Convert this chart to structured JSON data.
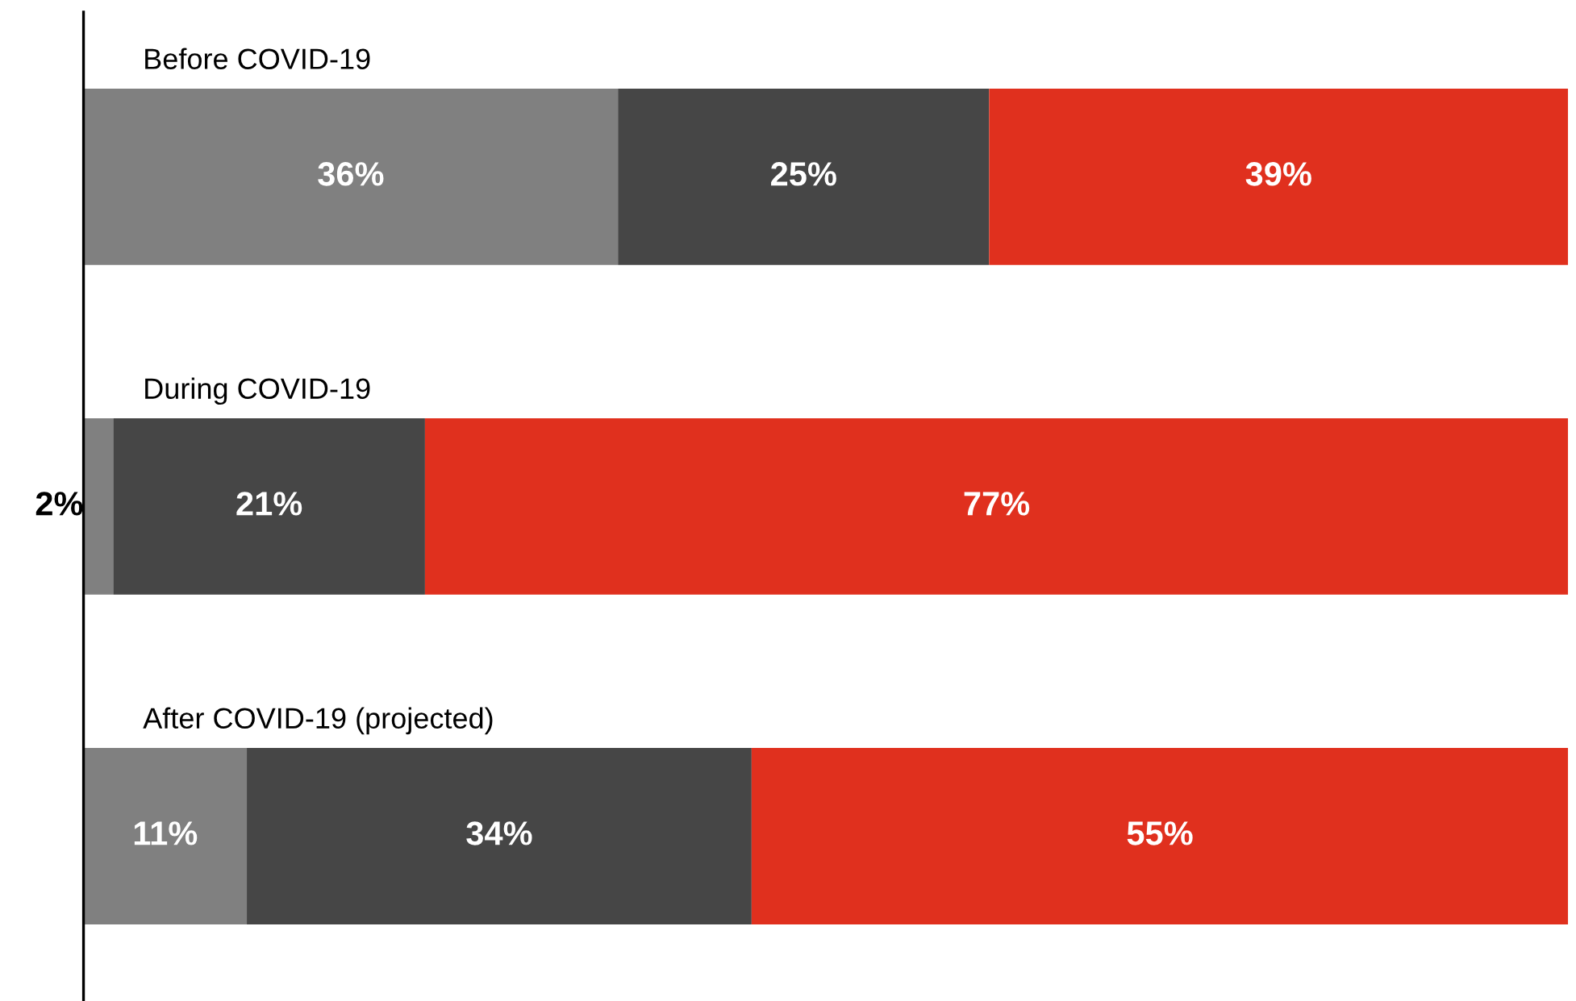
{
  "chart_data": {
    "type": "bar",
    "orientation": "horizontal",
    "stacked": true,
    "categories": [
      "Before COVID-19",
      "During COVID-19",
      "After COVID-19 (projected)"
    ],
    "series": [
      {
        "color": "#808080",
        "values": [
          36,
          2,
          11
        ],
        "value_labels": [
          "36%",
          "2%",
          "11%"
        ]
      },
      {
        "color": "#464646",
        "values": [
          25,
          21,
          34
        ],
        "value_labels": [
          "25%",
          "21%",
          "34%"
        ]
      },
      {
        "color": "#e0301e",
        "values": [
          39,
          77,
          55
        ],
        "value_labels": [
          "39%",
          "77%",
          "55%"
        ]
      }
    ],
    "tick_labels": false
  }
}
